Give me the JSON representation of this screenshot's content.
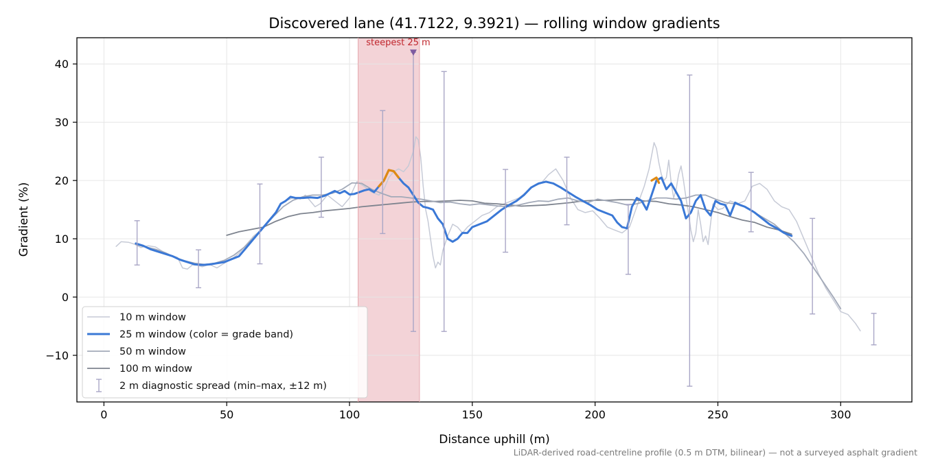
{
  "chart_data": {
    "type": "line",
    "title": "Discovered lane (41.7122, 9.3921) — rolling window gradients",
    "xlabel": "Distance uphill (m)",
    "ylabel": "Gradient (%)",
    "xlim": [
      -11,
      329
    ],
    "ylim": [
      -18,
      44.5
    ],
    "xticks": [
      0,
      50,
      100,
      150,
      200,
      250,
      300
    ],
    "yticks": [
      -10,
      0,
      10,
      20,
      30,
      40
    ],
    "xtick_labels": [
      "0",
      "50",
      "100",
      "150",
      "200",
      "250",
      "300"
    ],
    "ytick_labels": [
      "−10",
      "0",
      "10",
      "20",
      "30",
      "40"
    ],
    "grid": true,
    "legend_position": "lower-left",
    "footnote": "LiDAR-derived road-centreline profile (0.5 m DTM, bilinear) — not a surveyed asphalt gradient",
    "highlight_band": {
      "x_start": 103.5,
      "x_end": 128.5,
      "color": "#f3d3d7"
    },
    "annotation": {
      "text": "steepest 25 m",
      "x": 126,
      "y": 42
    },
    "colors": {
      "w10": "#c6cad6",
      "w25": "#3a78d6",
      "w25_steep": "#e08a12",
      "w50": "#a2a9b8",
      "w100": "#7d838e",
      "errorbar": "#a9a6c6",
      "marker": "#7d5aa0"
    },
    "series": [
      {
        "name": "10 m window",
        "x": [
          5,
          7,
          10,
          13,
          15,
          18,
          21,
          24,
          27,
          30,
          32,
          34,
          36,
          38,
          40,
          43,
          46,
          49,
          52,
          55,
          58,
          61,
          64,
          67,
          70,
          72,
          74,
          77,
          80,
          82,
          84,
          86,
          88,
          91,
          94,
          97,
          100,
          103,
          106,
          109,
          112,
          114,
          116,
          118,
          120,
          122,
          124,
          126,
          127,
          128,
          129,
          130,
          131,
          132,
          133,
          134,
          135,
          136,
          137,
          138,
          140,
          142,
          144,
          146,
          148,
          151,
          154,
          157,
          160,
          163,
          166,
          169,
          172,
          175,
          178,
          181,
          184,
          187,
          190,
          193,
          196,
          199,
          202,
          205,
          208,
          211,
          214,
          217,
          220,
          222,
          224,
          225,
          226,
          227,
          228,
          229,
          230,
          231,
          232,
          233,
          234,
          235,
          236,
          237,
          238,
          239,
          240,
          241,
          242,
          243,
          244,
          245,
          246,
          247,
          248,
          249,
          250,
          252,
          255,
          258,
          261,
          264,
          267,
          270,
          273,
          276,
          279,
          282,
          285,
          288,
          291,
          294,
          297,
          300,
          303,
          306,
          308
        ],
        "y": [
          8.7,
          9.5,
          9.4,
          9.0,
          8.5,
          8.8,
          8.6,
          7.8,
          7.2,
          6.8,
          5.0,
          4.8,
          5.5,
          5.5,
          5.2,
          5.6,
          5.0,
          5.8,
          6.5,
          7.5,
          9.0,
          10.5,
          11.5,
          13.0,
          14.5,
          16.0,
          16.5,
          17.0,
          16.8,
          17.5,
          16.5,
          15.5,
          16.0,
          17.5,
          16.5,
          15.5,
          17.0,
          19.8,
          19.0,
          18.0,
          17.5,
          18.5,
          20.5,
          21.5,
          22.0,
          21.5,
          22.5,
          25.0,
          27.5,
          27.0,
          24.0,
          19.0,
          15.0,
          13.0,
          10.0,
          7.0,
          5.0,
          6.0,
          5.5,
          8.0,
          10.5,
          12.5,
          12.0,
          11.0,
          12.0,
          13.0,
          14.0,
          14.5,
          15.5,
          16.0,
          16.5,
          17.0,
          18.0,
          19.0,
          19.5,
          21.0,
          22.0,
          20.0,
          17.0,
          15.0,
          14.5,
          14.8,
          13.5,
          12.0,
          11.5,
          11.0,
          12.0,
          15.5,
          19.0,
          22.0,
          26.5,
          25.5,
          23.0,
          21.0,
          20.0,
          20.5,
          23.5,
          19.5,
          17.0,
          18.5,
          21.0,
          22.5,
          20.0,
          17.0,
          14.5,
          11.5,
          9.5,
          11.0,
          15.0,
          12.5,
          9.5,
          10.5,
          9.0,
          12.5,
          16.0,
          15.5,
          15.0,
          15.2,
          16.5,
          16.0,
          16.5,
          19.0,
          19.5,
          18.5,
          16.5,
          15.5,
          15.0,
          13.0,
          10.0,
          7.0,
          4.0,
          1.5,
          -0.5,
          -2.5,
          -3.0,
          -4.5,
          -5.8
        ]
      },
      {
        "name": "25 m window (color = grade band)",
        "x": [
          13,
          16,
          19,
          22,
          25,
          28,
          31,
          34,
          37,
          40,
          43,
          46,
          49,
          52,
          55,
          58,
          61,
          64,
          67,
          70,
          72,
          74,
          76,
          78,
          81,
          84,
          87,
          90,
          92,
          94,
          96,
          98,
          100,
          102,
          104,
          106,
          108,
          110,
          112,
          114,
          116,
          118,
          120,
          122,
          124,
          126,
          128,
          130,
          132,
          134,
          136,
          138,
          140,
          142,
          144,
          146,
          148,
          150,
          153,
          156,
          159,
          162,
          165,
          168,
          171,
          174,
          177,
          180,
          183,
          186,
          189,
          192,
          195,
          198,
          201,
          204,
          207,
          209,
          211,
          213,
          215,
          217,
          219,
          221,
          223,
          225,
          227,
          229,
          231,
          233,
          235,
          237,
          239,
          241,
          243,
          245,
          247,
          249,
          251,
          253,
          255,
          257,
          259,
          261,
          263,
          265,
          268,
          271,
          274,
          277,
          280
        ],
        "y": [
          9.2,
          8.8,
          8.2,
          7.8,
          7.4,
          7.0,
          6.4,
          6.0,
          5.6,
          5.5,
          5.6,
          5.8,
          6.0,
          6.5,
          7.0,
          8.5,
          10.0,
          11.5,
          13.0,
          14.5,
          16.0,
          16.5,
          17.2,
          17.0,
          17.0,
          17.1,
          17.0,
          17.4,
          17.8,
          18.2,
          17.8,
          18.2,
          17.6,
          17.7,
          18.0,
          18.3,
          18.5,
          18.0,
          19.0,
          20.0,
          21.8,
          21.6,
          20.5,
          19.5,
          18.8,
          17.5,
          16.2,
          15.5,
          15.3,
          15.0,
          13.5,
          12.5,
          10.0,
          9.5,
          10.0,
          11.0,
          11.0,
          12.0,
          12.5,
          13.0,
          14.0,
          15.0,
          15.8,
          16.5,
          17.5,
          18.8,
          19.5,
          19.8,
          19.5,
          18.8,
          18.0,
          17.2,
          16.5,
          15.8,
          15.0,
          14.5,
          14.0,
          12.8,
          12.0,
          11.8,
          15.5,
          17.0,
          16.5,
          15.0,
          17.5,
          20.0,
          20.5,
          18.5,
          19.5,
          18.0,
          16.5,
          13.5,
          14.5,
          16.5,
          17.5,
          15.0,
          14.0,
          16.5,
          16.0,
          15.8,
          14.0,
          16.2,
          15.8,
          15.5,
          15.0,
          14.5,
          13.5,
          12.5,
          11.8,
          11.0,
          10.5
        ]
      },
      {
        "name": "50 m window",
        "x": [
          13,
          17,
          21,
          25,
          29,
          33,
          37,
          41,
          45,
          49,
          53,
          57,
          61,
          65,
          69,
          73,
          77,
          81,
          85,
          89,
          93,
          97,
          101,
          105,
          109,
          113,
          117,
          121,
          125,
          129,
          133,
          137,
          141,
          145,
          149,
          153,
          157,
          161,
          165,
          169,
          173,
          177,
          181,
          185,
          189,
          193,
          197,
          201,
          205,
          209,
          213,
          217,
          221,
          225,
          229,
          233,
          237,
          241,
          245,
          249,
          253,
          257,
          261,
          265,
          269,
          273,
          277,
          281,
          285,
          289,
          293,
          297,
          300
        ],
        "y": [
          9.0,
          8.6,
          8.2,
          7.6,
          6.8,
          6.2,
          5.8,
          5.6,
          5.8,
          6.3,
          7.2,
          8.5,
          10.2,
          12.0,
          13.8,
          15.5,
          16.6,
          17.2,
          17.5,
          17.5,
          17.8,
          18.5,
          19.6,
          19.5,
          18.5,
          17.8,
          17.2,
          17.2,
          17.0,
          16.8,
          16.5,
          16.2,
          16.3,
          16.0,
          15.8,
          16.0,
          15.8,
          15.6,
          15.5,
          15.8,
          16.2,
          16.5,
          16.4,
          16.8,
          17.0,
          16.5,
          16.2,
          16.8,
          16.5,
          16.2,
          15.8,
          16.0,
          16.5,
          17.0,
          17.0,
          16.8,
          17.0,
          17.5,
          17.5,
          16.8,
          16.2,
          16.0,
          15.5,
          14.5,
          13.5,
          12.5,
          11.0,
          9.5,
          7.5,
          5.0,
          2.5,
          0.0,
          -2.0
        ]
      },
      {
        "name": "100 m window",
        "x": [
          50,
          55,
          60,
          65,
          70,
          75,
          80,
          85,
          90,
          95,
          100,
          105,
          110,
          115,
          120,
          125,
          130,
          135,
          140,
          145,
          150,
          155,
          160,
          165,
          170,
          175,
          180,
          185,
          190,
          195,
          200,
          205,
          210,
          215,
          220,
          225,
          230,
          235,
          240,
          245,
          250,
          255,
          260,
          265,
          270,
          275,
          280
        ],
        "y": [
          10.6,
          11.2,
          11.6,
          12.0,
          13.0,
          13.8,
          14.3,
          14.5,
          14.8,
          15.0,
          15.2,
          15.5,
          15.7,
          15.9,
          16.1,
          16.3,
          16.4,
          16.4,
          16.5,
          16.6,
          16.5,
          16.1,
          16.0,
          15.8,
          15.6,
          15.7,
          15.8,
          16.0,
          16.2,
          16.5,
          16.6,
          16.6,
          16.7,
          16.7,
          16.5,
          16.4,
          16.0,
          15.8,
          15.5,
          15.0,
          14.5,
          13.8,
          13.2,
          12.8,
          12.0,
          11.5,
          10.8
        ]
      }
    ],
    "steep_segments": [
      {
        "x": [
          112,
          114,
          116,
          118,
          120
        ],
        "y": [
          19.0,
          20.0,
          21.8,
          21.6,
          20.5
        ]
      },
      {
        "x": [
          223,
          225,
          226
        ],
        "y": [
          20.0,
          20.5,
          19.6
        ]
      }
    ],
    "errorbars": {
      "name": "2 m diagnostic spread (min–max, ±12 m)",
      "points": [
        {
          "x": 13.5,
          "low": 5.5,
          "high": 13.1
        },
        {
          "x": 38.5,
          "low": 1.6,
          "high": 8.1
        },
        {
          "x": 63.5,
          "low": 5.7,
          "high": 19.4
        },
        {
          "x": 88.5,
          "low": 13.7,
          "high": 24.0
        },
        {
          "x": 113.5,
          "low": 10.9,
          "high": 32.0
        },
        {
          "x": 126,
          "low": -5.9,
          "high": 42.0
        },
        {
          "x": 138.5,
          "low": -5.9,
          "high": 38.7
        },
        {
          "x": 163.5,
          "low": 7.7,
          "high": 21.9
        },
        {
          "x": 188.5,
          "low": 12.4,
          "high": 24.0
        },
        {
          "x": 213.5,
          "low": 3.9,
          "high": 15.9
        },
        {
          "x": 238.5,
          "low": -15.3,
          "high": 38.1
        },
        {
          "x": 263.5,
          "low": 11.2,
          "high": 21.4
        },
        {
          "x": 288.5,
          "low": -2.9,
          "high": 13.5
        },
        {
          "x": 313.5,
          "low": -8.2,
          "high": -2.8
        }
      ]
    }
  }
}
